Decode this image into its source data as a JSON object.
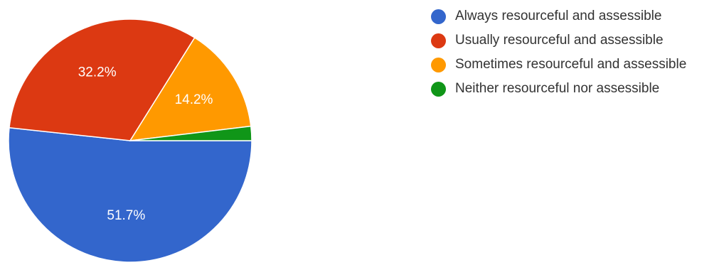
{
  "chart_data": {
    "type": "pie",
    "title": "",
    "slices": [
      {
        "name": "Always resourceful and assessible",
        "value": 51.7,
        "label": "51.7%",
        "color": "#3366cc",
        "show_label": true
      },
      {
        "name": "Usually resourceful and assessible",
        "value": 32.2,
        "label": "32.2%",
        "color": "#dc3912",
        "show_label": true
      },
      {
        "name": "Sometimes resourceful and assessible",
        "value": 14.2,
        "label": "14.2%",
        "color": "#ff9900",
        "show_label": true
      },
      {
        "name": "Neither resourceful nor assessible",
        "value": 1.9,
        "label": "",
        "color": "#109618",
        "show_label": false
      }
    ],
    "start_angle_deg": 0,
    "direction": "clockwise",
    "legend_position": "right"
  }
}
